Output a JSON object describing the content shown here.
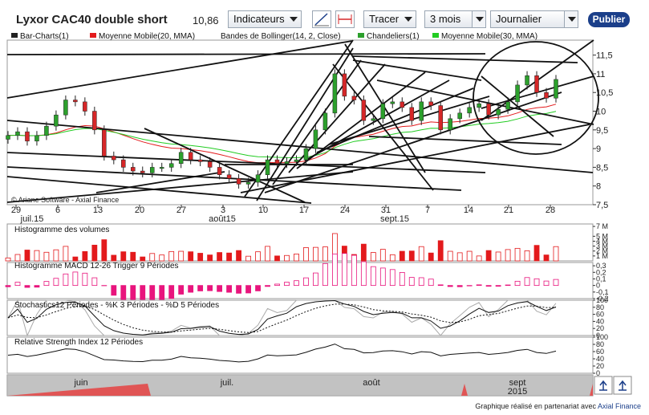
{
  "toolbar": {
    "title": "Lyxor CAC40 double short",
    "last_price": "10,86",
    "indicators_label": "Indicateurs",
    "draw_label": "Tracer",
    "period_value": "3 mois",
    "interval_value": "Journalier",
    "publish_label": "Publier"
  },
  "legend": {
    "bar_charts": "Bar-Charts(1)",
    "ma20": "Moyenne Mobile(20, MMA)",
    "bollinger": "Bandes de Bollinger(14, 2, Close)",
    "candles": "Chandeliers(1)",
    "ma30": "Moyenne Mobile(30, MMA)"
  },
  "colors": {
    "ma20": "#e31a1c",
    "ma30": "#22cc22",
    "bull": "#2ca02c",
    "bear": "#d62728",
    "macd_bar": "#e8157d",
    "navigator_bg": "#b5b5b5"
  },
  "copyright": "© Ariane Software - Axial Finance",
  "footer": {
    "text": "Graphique réalisé en partenariat avec",
    "brand": "Axial Finance"
  },
  "panels": {
    "volume_title": "Histogramme des volumes",
    "macd_title": "Histogramme MACD 12-26   Trigger 9 Périodes",
    "stoch_title": "Stochastics12 Périodes  - %K 3 Périodes  - %D 5 Périodes",
    "rsi_title": "Relative Strength Index 12 Périodes"
  },
  "chart_data": [
    {
      "type": "candlestick",
      "title": "Lyxor CAC40 double short",
      "x_ticks": [
        "29",
        "6",
        "13",
        "20",
        "27",
        "3",
        "10",
        "17",
        "24",
        "31",
        "7",
        "14",
        "21",
        "28"
      ],
      "month_labels": [
        "juil.15",
        "août15",
        "sept.15"
      ],
      "y_ticks": [
        "11,5",
        "11",
        "10,5",
        "10",
        "9,5",
        "9",
        "8,5",
        "8",
        "7,5"
      ],
      "ylim": [
        7.5,
        11.9
      ],
      "series": [
        {
          "name": "close",
          "values": [
            9.35,
            9.45,
            9.2,
            9.35,
            9.6,
            9.9,
            10.3,
            10.25,
            10.0,
            9.5,
            8.8,
            8.7,
            8.5,
            8.4,
            8.35,
            8.5,
            8.5,
            8.6,
            8.9,
            8.7,
            8.65,
            8.5,
            8.3,
            8.2,
            8.05,
            8.1,
            8.3,
            8.7,
            8.6,
            8.65,
            8.7,
            9.0,
            9.5,
            9.95,
            11.0,
            10.4,
            10.3,
            9.75,
            9.8,
            10.2,
            10.25,
            10.1,
            9.75,
            10.25,
            10.15,
            9.5,
            9.8,
            9.95,
            10.1,
            10.2,
            9.9,
            10.05,
            10.25,
            10.7,
            10.95,
            10.5,
            10.35,
            10.85
          ]
        }
      ]
    },
    {
      "type": "bar",
      "title": "Histogramme des volumes",
      "y_ticks": [
        "7 M",
        "5 M",
        "4 M",
        "3 M",
        "2 M",
        "1 M"
      ]
    },
    {
      "type": "bar",
      "title": "Histogramme MACD 12-26   Trigger 9 Périodes",
      "y_ticks": [
        "0,3",
        "0,2",
        "0,1",
        "0",
        "-0,1",
        "-0,2"
      ]
    },
    {
      "type": "line",
      "title": "Stochastics12 Périodes  - %K 3 Périodes  - %D 5 Périodes",
      "y_ticks": [
        "100",
        "80",
        "60",
        "40",
        "20",
        "0"
      ]
    },
    {
      "type": "line",
      "title": "Relative Strength Index 12 Périodes",
      "y_ticks": [
        "100",
        "80",
        "60",
        "40",
        "20",
        "0"
      ]
    }
  ],
  "navigator": {
    "labels": [
      "juin",
      "juil.",
      "août",
      "sept\n2015"
    ]
  }
}
